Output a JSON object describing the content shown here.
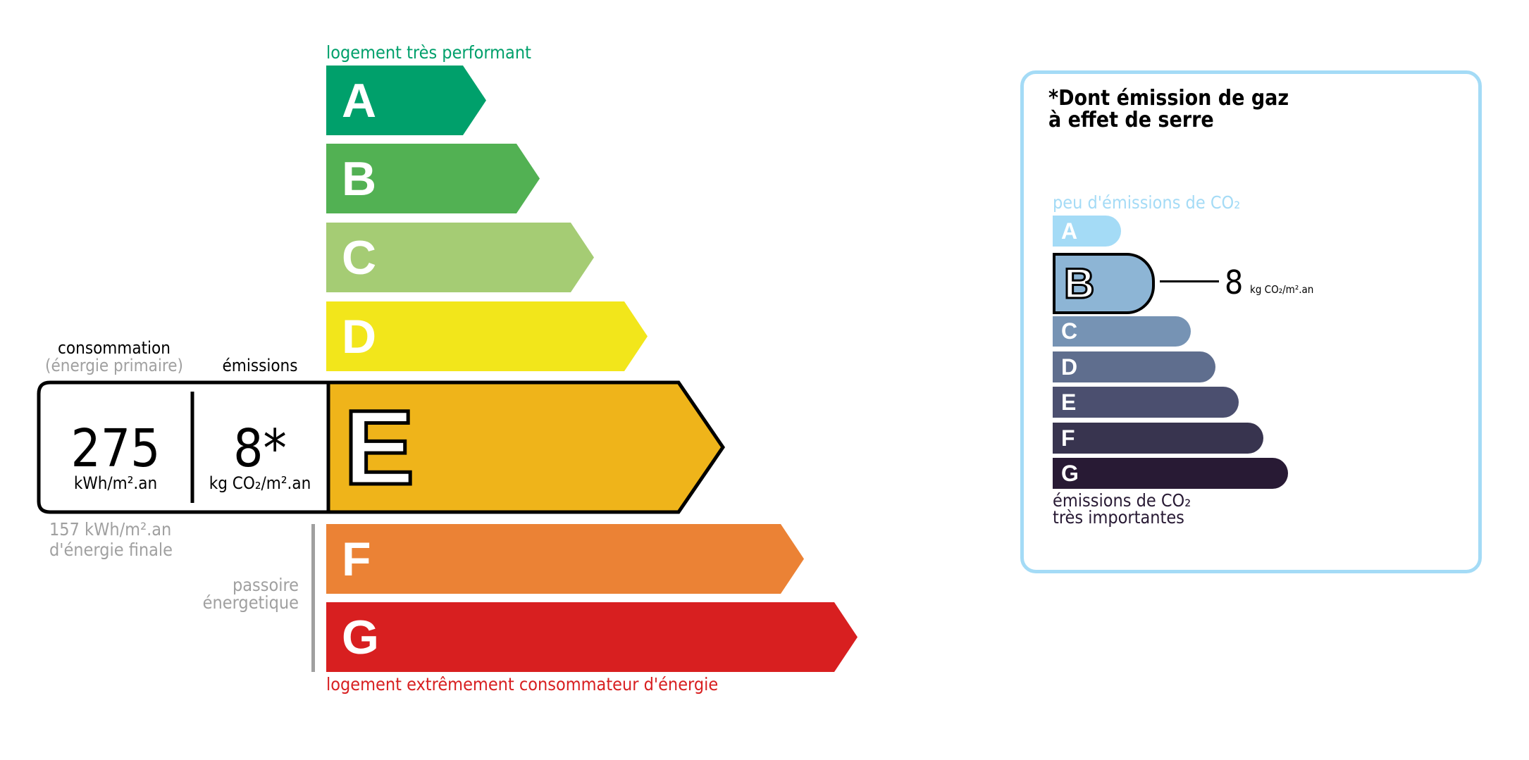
{
  "energy": {
    "top_label": "logement très performant",
    "bottom_label": "logement extrêmement consommateur d'énergie",
    "classes": [
      {
        "letter": "A",
        "color": "#00a06b"
      },
      {
        "letter": "B",
        "color": "#52b153"
      },
      {
        "letter": "C",
        "color": "#a5cc74"
      },
      {
        "letter": "D",
        "color": "#f2e61b"
      },
      {
        "letter": "E",
        "color": "#efb41a"
      },
      {
        "letter": "F",
        "color": "#eb8235"
      },
      {
        "letter": "G",
        "color": "#d81f20"
      }
    ],
    "current_class": "E",
    "consumption_label": "consommation",
    "consumption_sub": "(énergie primaire)",
    "emissions_label": "émissions",
    "consumption_value": "275",
    "consumption_unit": "kWh/m².an",
    "emissions_value": "8*",
    "emissions_unit": "kg CO₂/m².an",
    "final_energy_line1": "157 kWh/m².an",
    "final_energy_line2": "d'énergie finale",
    "passoire_line1": "passoire",
    "passoire_line2": "énergetique",
    "top_label_color": "#00a06b",
    "bottom_label_color": "#d81f20"
  },
  "ges": {
    "title_line1": "*Dont émission de gaz",
    "title_line2": "à effet de serre",
    "top_label": "peu d'émissions de CO₂",
    "bottom_line1": "émissions de CO₂",
    "bottom_line2": "très importantes",
    "classes": [
      {
        "letter": "A",
        "color": "#a4dbf6"
      },
      {
        "letter": "B",
        "color": "#8db5d5"
      },
      {
        "letter": "C",
        "color": "#7693b4"
      },
      {
        "letter": "D",
        "color": "#5f6e8e"
      },
      {
        "letter": "E",
        "color": "#4b4f6f"
      },
      {
        "letter": "F",
        "color": "#38344f"
      },
      {
        "letter": "G",
        "color": "#281a34"
      }
    ],
    "current_class": "B",
    "value": "8",
    "unit": "kg CO₂/m².an",
    "border_color": "#a4dbf6"
  }
}
